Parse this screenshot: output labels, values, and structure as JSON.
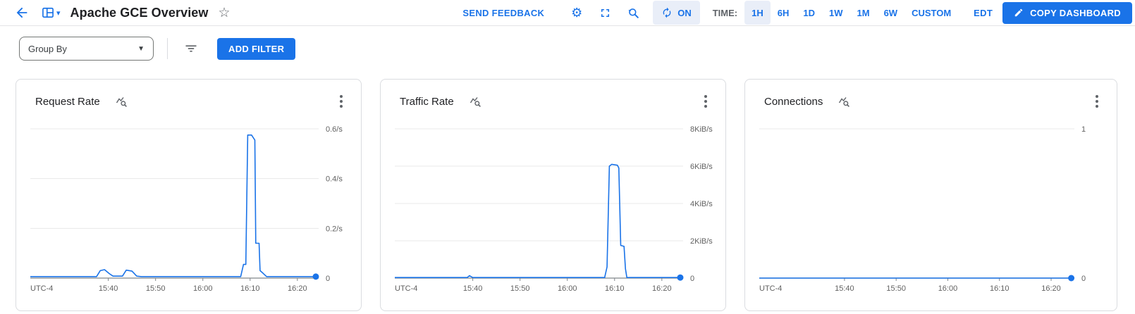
{
  "header": {
    "title": "Apache GCE Overview",
    "send_feedback": "SEND FEEDBACK",
    "auto_refresh": {
      "label": "ON",
      "enabled": true
    },
    "time_label": "TIME:",
    "time_ranges": [
      {
        "label": "1H",
        "active": true
      },
      {
        "label": "6H",
        "active": false
      },
      {
        "label": "1D",
        "active": false
      },
      {
        "label": "1W",
        "active": false
      },
      {
        "label": "1M",
        "active": false
      },
      {
        "label": "6W",
        "active": false
      },
      {
        "label": "CUSTOM",
        "active": false
      }
    ],
    "timezone_label": "EDT",
    "copy_dashboard": "COPY DASHBOARD",
    "accent_color": "#1a73e8",
    "chip_bg": "#e9eef8"
  },
  "filterbar": {
    "group_by_label": "Group By",
    "add_filter": "ADD FILTER"
  },
  "icons": {
    "back-arrow": "arrow pointing left",
    "dashboard-grid": "dashboard panes",
    "dashboard-caret": "▾",
    "star-outline": "☆",
    "settings-gear": "⚙",
    "fullscreen": "corner brackets",
    "zoom-reset": "magnifier with undo arrow",
    "refresh": "circular arrows",
    "edit-pencil": "pencil",
    "filter-list": "three shrinking bars",
    "select-caret": "▼",
    "chart-explore": "zigzag line with magnifier",
    "more-options": "⋮ vertical dots"
  },
  "chart_data": [
    {
      "type": "line",
      "title": "Request Rate",
      "x_unit": "minutes_since_midnight",
      "x_axis_note": "UTC-4",
      "xlim": [
        923.5,
        984.5
      ],
      "xticks": [
        {
          "t": 940,
          "label": "15:40"
        },
        {
          "t": 950,
          "label": "15:50"
        },
        {
          "t": 960,
          "label": "16:00"
        },
        {
          "t": 970,
          "label": "16:10"
        },
        {
          "t": 980,
          "label": "16:20"
        }
      ],
      "ylim": [
        0,
        0.6
      ],
      "yticks": [
        {
          "v": 0.6,
          "label": "0.6/s"
        },
        {
          "v": 0.4,
          "label": "0.4/s"
        },
        {
          "v": 0.2,
          "label": "0.2/s"
        },
        {
          "v": 0,
          "label": "0"
        }
      ],
      "grid": true,
      "legend": "none",
      "line_color": "#1a73e8",
      "endpoint_dot": true,
      "points": [
        [
          923.5,
          0.006
        ],
        [
          937.5,
          0.006
        ],
        [
          938.3,
          0.03
        ],
        [
          939.2,
          0.034
        ],
        [
          940.2,
          0.018
        ],
        [
          941.0,
          0.008
        ],
        [
          943.0,
          0.008
        ],
        [
          943.8,
          0.032
        ],
        [
          945.0,
          0.028
        ],
        [
          946.0,
          0.008
        ],
        [
          947.0,
          0.006
        ],
        [
          968.0,
          0.006
        ],
        [
          968.6,
          0.055
        ],
        [
          969.1,
          0.055
        ],
        [
          969.5,
          0.575
        ],
        [
          970.3,
          0.575
        ],
        [
          971.0,
          0.555
        ],
        [
          971.2,
          0.14
        ],
        [
          971.9,
          0.14
        ],
        [
          972.1,
          0.03
        ],
        [
          972.7,
          0.02
        ],
        [
          973.5,
          0.006
        ],
        [
          983.9,
          0.006
        ]
      ]
    },
    {
      "type": "line",
      "title": "Traffic Rate",
      "x_unit": "minutes_since_midnight",
      "x_axis_note": "UTC-4",
      "xlim": [
        923.5,
        984.5
      ],
      "xticks": [
        {
          "t": 940,
          "label": "15:40"
        },
        {
          "t": 950,
          "label": "15:50"
        },
        {
          "t": 960,
          "label": "16:00"
        },
        {
          "t": 970,
          "label": "16:10"
        },
        {
          "t": 980,
          "label": "16:20"
        }
      ],
      "ylim": [
        0,
        8
      ],
      "yticks": [
        {
          "v": 8,
          "label": "8KiB/s"
        },
        {
          "v": 6,
          "label": "6KiB/s"
        },
        {
          "v": 4,
          "label": "4KiB/s"
        },
        {
          "v": 2,
          "label": "2KiB/s"
        },
        {
          "v": 0,
          "label": "0"
        }
      ],
      "grid": true,
      "legend": "none",
      "line_color": "#1a73e8",
      "endpoint_dot": true,
      "points": [
        [
          923.5,
          0.03
        ],
        [
          938.8,
          0.03
        ],
        [
          939.3,
          0.13
        ],
        [
          940.0,
          0.03
        ],
        [
          967.9,
          0.03
        ],
        [
          968.4,
          0.6
        ],
        [
          968.9,
          6.0
        ],
        [
          969.4,
          6.1
        ],
        [
          970.6,
          6.05
        ],
        [
          970.9,
          5.9
        ],
        [
          971.3,
          1.75
        ],
        [
          972.0,
          1.7
        ],
        [
          972.3,
          0.5
        ],
        [
          972.6,
          0.03
        ],
        [
          983.9,
          0.03
        ]
      ]
    },
    {
      "type": "line",
      "title": "Connections",
      "x_unit": "minutes_since_midnight",
      "x_axis_note": "UTC-4",
      "xlim": [
        923.5,
        984.5
      ],
      "xticks": [
        {
          "t": 940,
          "label": "15:40"
        },
        {
          "t": 950,
          "label": "15:50"
        },
        {
          "t": 960,
          "label": "16:00"
        },
        {
          "t": 970,
          "label": "16:10"
        },
        {
          "t": 980,
          "label": "16:20"
        }
      ],
      "ylim": [
        0,
        1
      ],
      "yticks": [
        {
          "v": 1,
          "label": "1"
        },
        {
          "v": 0,
          "label": "0"
        }
      ],
      "grid": true,
      "legend": "none",
      "line_color": "#1a73e8",
      "endpoint_dot": true,
      "points": [
        [
          923.5,
          0
        ],
        [
          983.9,
          0
        ]
      ]
    }
  ]
}
